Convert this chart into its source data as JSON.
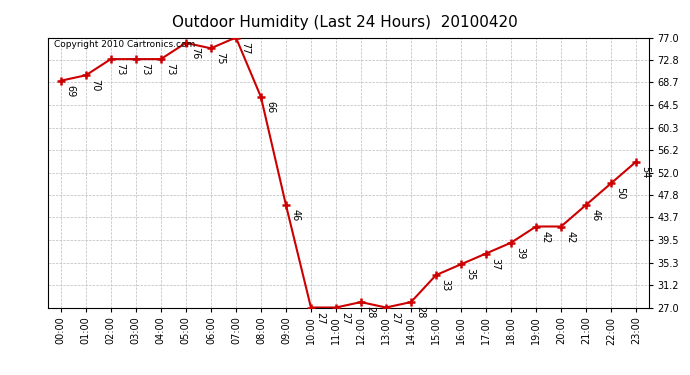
{
  "title": "Outdoor Humidity (Last 24 Hours)  20100420",
  "copyright": "Copyright 2010 Cartronics.com",
  "hours": [
    "00:00",
    "01:00",
    "02:00",
    "03:00",
    "04:00",
    "05:00",
    "06:00",
    "07:00",
    "08:00",
    "09:00",
    "10:00",
    "11:00",
    "12:00",
    "13:00",
    "14:00",
    "15:00",
    "16:00",
    "17:00",
    "18:00",
    "19:00",
    "20:00",
    "21:00",
    "22:00",
    "23:00"
  ],
  "values": [
    69,
    70,
    73,
    73,
    73,
    76,
    75,
    77,
    66,
    46,
    27,
    27,
    28,
    27,
    28,
    33,
    35,
    37,
    39,
    42,
    42,
    46,
    50,
    54
  ],
  "ylim_min": 27.0,
  "ylim_max": 77.0,
  "yticks": [
    27.0,
    31.2,
    35.3,
    39.5,
    43.7,
    47.8,
    52.0,
    56.2,
    60.3,
    64.5,
    68.7,
    72.8,
    77.0
  ],
  "line_color": "#cc0000",
  "marker": "+",
  "marker_color": "#cc0000",
  "marker_size": 6,
  "bg_color": "#ffffff",
  "grid_color": "#bbbbbb",
  "title_fontsize": 11,
  "label_fontsize": 7,
  "annotation_fontsize": 7,
  "copyright_fontsize": 6.5
}
